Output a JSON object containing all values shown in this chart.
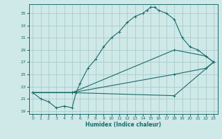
{
  "title": "",
  "xlabel": "Humidex (Indice chaleur)",
  "ylabel": "",
  "bg_color": "#cfe8e8",
  "grid_color": "#aacccc",
  "line_color": "#1a6b6b",
  "xlim": [
    -0.5,
    23.5
  ],
  "ylim": [
    18.5,
    36.5
  ],
  "xticks": [
    0,
    1,
    2,
    3,
    4,
    5,
    6,
    7,
    8,
    9,
    10,
    11,
    12,
    13,
    14,
    15,
    16,
    17,
    18,
    19,
    20,
    21,
    22,
    23
  ],
  "yticks": [
    19,
    21,
    23,
    25,
    27,
    29,
    31,
    33,
    35
  ],
  "series": [
    {
      "x": [
        0,
        1,
        2,
        3,
        4,
        5,
        5.5,
        6,
        7,
        8,
        9,
        10,
        11,
        12,
        13,
        14,
        14.5,
        15,
        15.5,
        16,
        17,
        18,
        19,
        20,
        21,
        22,
        23
      ],
      "y": [
        22,
        21,
        20.5,
        19.5,
        19.8,
        19.5,
        22,
        23.5,
        26,
        27.5,
        29.5,
        31,
        32,
        33.5,
        34.5,
        35,
        35.5,
        36,
        36,
        35.5,
        35,
        34,
        31,
        29.5,
        29,
        28,
        27
      ],
      "marker": "+"
    },
    {
      "x": [
        0,
        5,
        18,
        22,
        23
      ],
      "y": [
        22,
        22,
        29,
        28,
        27
      ],
      "marker": "+"
    },
    {
      "x": [
        0,
        5,
        18,
        22,
        23
      ],
      "y": [
        22,
        22,
        25,
        26,
        27
      ],
      "marker": "+"
    },
    {
      "x": [
        0,
        5,
        18,
        23
      ],
      "y": [
        22,
        22,
        21.5,
        27
      ],
      "marker": "+"
    }
  ]
}
